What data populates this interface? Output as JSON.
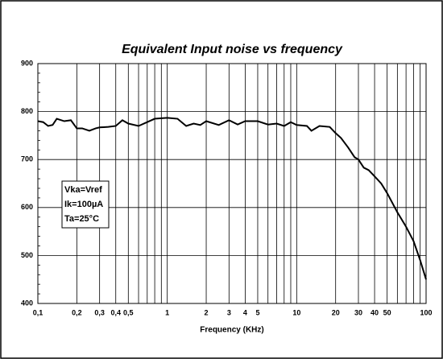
{
  "chart_data": {
    "type": "line",
    "title": "Equivalent Input noise vs frequency",
    "x_label": "Frequency (KHz)",
    "x": [
      0.1,
      0.11,
      0.12,
      0.13,
      0.14,
      0.16,
      0.18,
      0.2,
      0.22,
      0.25,
      0.28,
      0.3,
      0.35,
      0.4,
      0.45,
      0.5,
      0.6,
      0.7,
      0.8,
      1,
      1.2,
      1.4,
      1.6,
      1.8,
      2,
      2.5,
      3,
      3.5,
      4,
      5,
      6,
      7,
      8,
      9,
      10,
      12,
      13,
      15,
      18,
      20,
      22,
      25,
      28,
      30,
      33,
      36,
      40,
      45,
      50,
      60,
      70,
      80,
      90,
      100
    ],
    "series": [
      {
        "color": "#000000",
        "values": [
          780,
          778,
          770,
          772,
          785,
          780,
          782,
          765,
          765,
          760,
          765,
          767,
          768,
          770,
          782,
          775,
          770,
          778,
          785,
          787,
          785,
          770,
          775,
          772,
          780,
          772,
          782,
          773,
          780,
          780,
          773,
          775,
          770,
          778,
          772,
          770,
          760,
          770,
          768,
          755,
          745,
          725,
          705,
          700,
          683,
          678,
          665,
          650,
          630,
          590,
          560,
          530,
          490,
          450
        ]
      }
    ],
    "xlog": true,
    "xlim": [
      0.1,
      100
    ],
    "ylim": [
      400,
      900
    ],
    "xticks": [
      {
        "value": 0.1,
        "label": "0,1"
      },
      {
        "value": 0.2,
        "label": "0,2"
      },
      {
        "value": 0.3,
        "label": "0,3"
      },
      {
        "value": 0.4,
        "label": "0,4"
      },
      {
        "value": 0.5,
        "label": "0,5"
      },
      1,
      2,
      3,
      4,
      5,
      10,
      20,
      30,
      40,
      50,
      100
    ],
    "xminor": [
      0.6,
      0.7,
      0.8,
      0.9,
      6,
      7,
      8,
      9,
      60,
      70,
      80,
      90
    ],
    "yticks": [
      400,
      500,
      600,
      700,
      800,
      900
    ],
    "grid": true,
    "annotations": [
      "Vka=Vref",
      "Ik=100µA",
      "Ta=25°C"
    ]
  }
}
